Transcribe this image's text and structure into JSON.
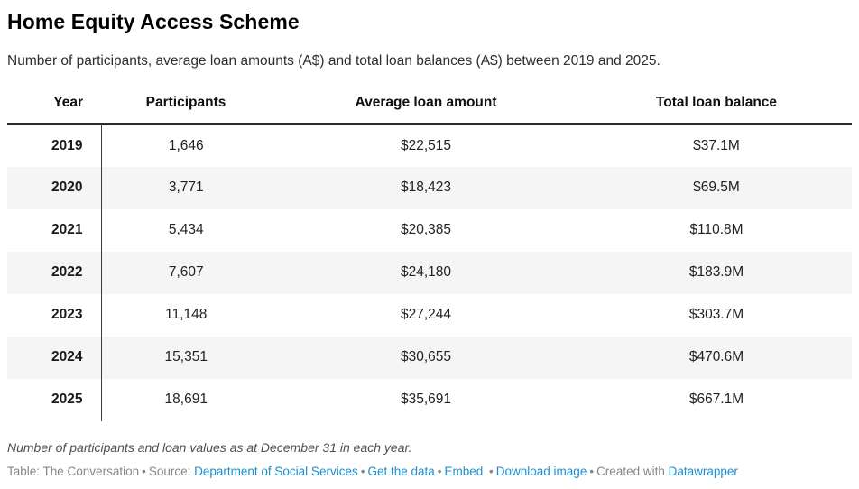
{
  "header": {
    "title": "Home Equity Access Scheme",
    "subtitle": "Number of participants, average loan amounts (A$) and total loan balances (A$) between 2019 and 2025."
  },
  "chart_data": {
    "type": "table",
    "title": "Home Equity Access Scheme",
    "subtitle": "Number of participants, average loan amounts (A$) and total loan balances (A$) between 2019 and 2025.",
    "columns": [
      "Year",
      "Participants",
      "Average loan amount",
      "Total loan balance"
    ],
    "categories": [
      "2019",
      "2020",
      "2021",
      "2022",
      "2023",
      "2024",
      "2025"
    ],
    "series": [
      {
        "name": "Participants",
        "values": [
          1646,
          3771,
          5434,
          7607,
          11148,
          15351,
          18691
        ]
      },
      {
        "name": "Average loan amount (A$)",
        "values": [
          22515,
          18423,
          20385,
          24180,
          27244,
          30655,
          35691
        ]
      },
      {
        "name": "Total loan balance (A$ millions)",
        "values": [
          37.1,
          69.5,
          110.8,
          183.9,
          303.7,
          470.6,
          667.1
        ]
      }
    ]
  },
  "table": {
    "columns": [
      "Year",
      "Participants",
      "Average loan amount",
      "Total loan balance"
    ],
    "rows": [
      {
        "year": "2019",
        "participants": "1,646",
        "avg_loan": "$22,515",
        "total_balance": "$37.1M"
      },
      {
        "year": "2020",
        "participants": "3,771",
        "avg_loan": "$18,423",
        "total_balance": "$69.5M"
      },
      {
        "year": "2021",
        "participants": "5,434",
        "avg_loan": "$20,385",
        "total_balance": "$110.8M"
      },
      {
        "year": "2022",
        "participants": "7,607",
        "avg_loan": "$24,180",
        "total_balance": "$183.9M"
      },
      {
        "year": "2023",
        "participants": "11,148",
        "avg_loan": "$27,244",
        "total_balance": "$303.7M"
      },
      {
        "year": "2024",
        "participants": "15,351",
        "avg_loan": "$30,655",
        "total_balance": "$470.6M"
      },
      {
        "year": "2025",
        "participants": "18,691",
        "avg_loan": "$35,691",
        "total_balance": "$667.1M"
      }
    ]
  },
  "footnote": "Number of participants and loan values as at December 31 in each year.",
  "footer": {
    "credit": "Table: The Conversation",
    "sep": "•",
    "source_label": "Source:",
    "source_link": "Department of Social Services",
    "get_data_link": "Get the data",
    "embed_link": "Embed",
    "download_link": "Download image",
    "created_with": "Created with",
    "tool_link": "Datawrapper"
  },
  "colors": {
    "link_blue": "#1d8fcc",
    "stripe_grey": "#f5f5f5",
    "header_rule": "#2b2b2b",
    "footer_grey": "#868686"
  }
}
